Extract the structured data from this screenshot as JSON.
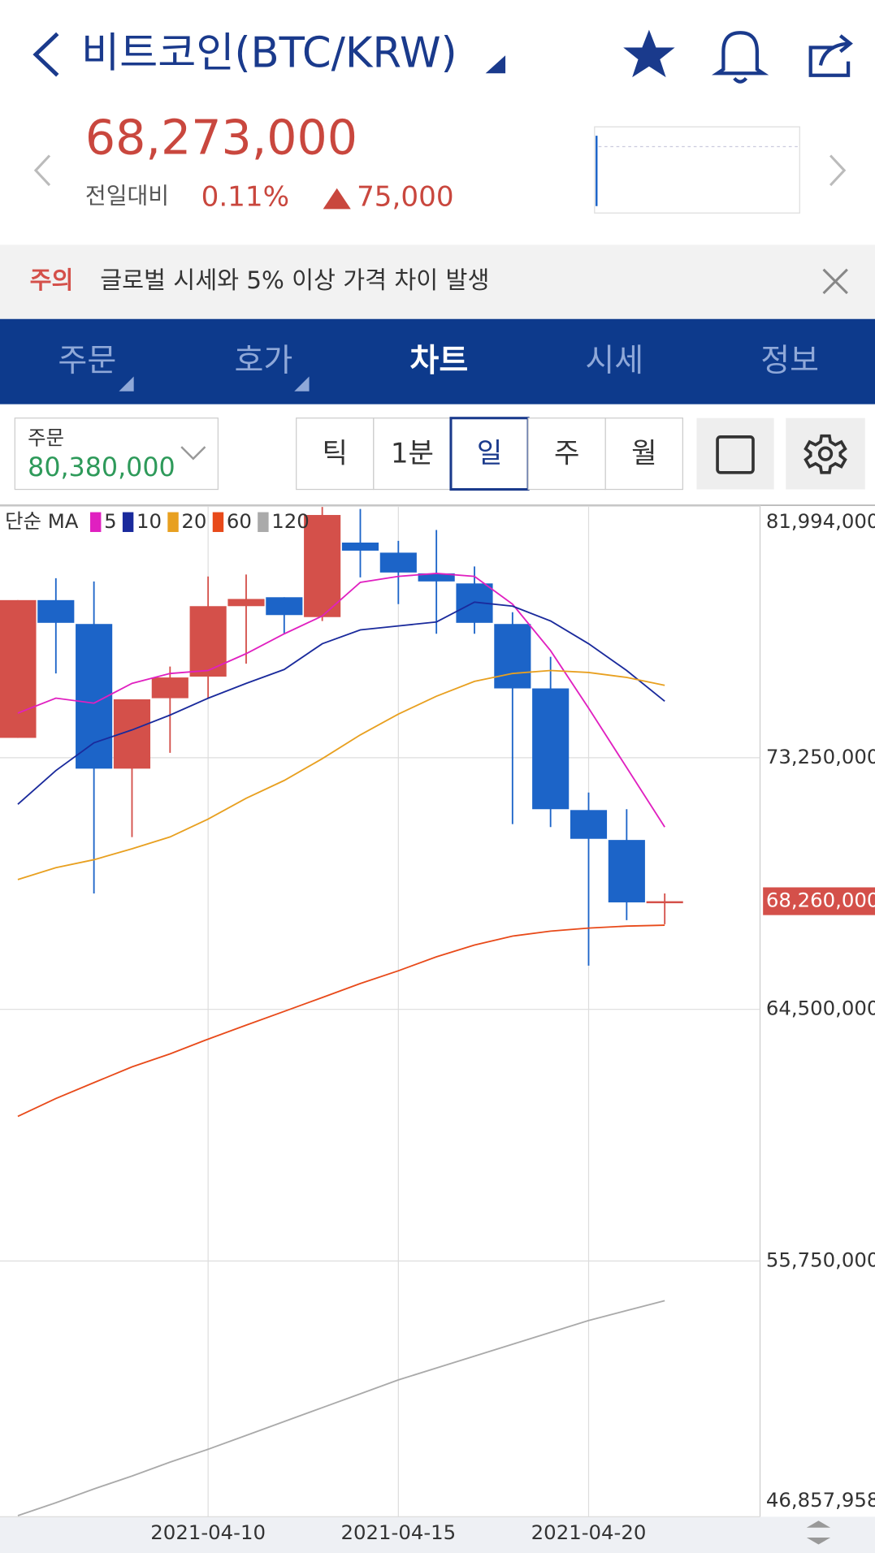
{
  "header": {
    "title": "비트코인(BTC/KRW)"
  },
  "quote": {
    "price": "68,273,000",
    "change_label": "전일대비",
    "change_rate": "0.11%",
    "change_amount": "75,000"
  },
  "notice": {
    "tag": "주의",
    "text": "글로벌 시세와 5% 이상 가격 차이 발생"
  },
  "tabs": [
    "주문",
    "호가",
    "차트",
    "시세",
    "정보"
  ],
  "order": {
    "label": "주문",
    "price": "80,380,000"
  },
  "periods": [
    "틱",
    "1분",
    "일",
    "주",
    "월"
  ],
  "chart_data": {
    "type": "candlestick",
    "legend_title": "단순 MA",
    "categories": [
      null,
      null,
      null,
      null,
      null,
      "2021-04-10",
      null,
      null,
      null,
      null,
      "2021-04-15",
      null,
      null,
      null,
      null,
      "2021-04-20",
      null,
      null
    ],
    "open": [
      73940000,
      78730000,
      77900000,
      72870000,
      75320000,
      76070000,
      78520000,
      78830000,
      78140000,
      80730000,
      80380000,
      79660000,
      79310000,
      77900000,
      75660000,
      71430000,
      70390000,
      68190000
    ],
    "high": [
      78730000,
      79490000,
      79380000,
      75280000,
      76420000,
      79550000,
      79620000,
      78830000,
      81970000,
      81900000,
      80790000,
      81170000,
      79900000,
      78310000,
      76760000,
      72040000,
      71460000,
      68530000
    ],
    "low": [
      73940000,
      76180000,
      68530000,
      70490000,
      73420000,
      75320000,
      76520000,
      77560000,
      78000000,
      79520000,
      78590000,
      77560000,
      77560000,
      70940000,
      70840000,
      66020000,
      67600000,
      67460000
    ],
    "close": [
      78730000,
      77940000,
      72870000,
      75280000,
      76040000,
      78520000,
      78770000,
      78210000,
      81690000,
      80450000,
      79690000,
      79380000,
      77940000,
      75660000,
      71460000,
      70430000,
      68220000,
      68260000
    ],
    "up_color": "#d4504a",
    "down_color": "#1c64c8",
    "series": [
      {
        "name": "5",
        "color": "#e020c0",
        "values": [
          74800000,
          75320000,
          75145000,
          75834000,
          76178000,
          76282000,
          76867000,
          77556000,
          78176000,
          79347000,
          79554000,
          79658000,
          79554000,
          78590000,
          76970000,
          74972000,
          72906000,
          70839000
        ]
      },
      {
        "name": "10",
        "color": "#1a2a9c",
        "values": [
          71631000,
          72802000,
          73767000,
          74215000,
          74731000,
          75317000,
          75834000,
          76316000,
          77212000,
          77694000,
          77832000,
          77970000,
          78658000,
          78521000,
          78004000,
          77212000,
          76282000,
          75214000
        ]
      },
      {
        "name": "20",
        "color": "#e8a020",
        "values": [
          69013000,
          69426000,
          69702000,
          70081000,
          70494000,
          71114000,
          71838000,
          72458000,
          73216000,
          74042000,
          74766000,
          75386000,
          75903000,
          76178000,
          76282000,
          76213000,
          76040000,
          75765000
        ]
      },
      {
        "name": "60",
        "color": "#e84a1a",
        "values": [
          60779000,
          61400000,
          61951000,
          62502000,
          62950000,
          63466000,
          63949000,
          64431000,
          64913000,
          65396000,
          65843000,
          66326000,
          66739000,
          67049000,
          67221000,
          67325000,
          67394000,
          67428000
        ]
      },
      {
        "name": "120",
        "color": "#aaaaaa",
        "values": [
          46897000,
          47344000,
          47827000,
          48274000,
          48757000,
          49205000,
          49687000,
          50169000,
          50651000,
          51134000,
          51616000,
          52029000,
          52443000,
          52856000,
          53270000,
          53683000,
          54027000,
          54372000
        ]
      }
    ],
    "ylim": [
      46857958,
      81994000
    ],
    "yticks": [
      {
        "value": 46857958,
        "label": "46,857,958"
      },
      {
        "value": 55750000,
        "label": "55,750,000"
      },
      {
        "value": 64500000,
        "label": "64,500,000"
      },
      {
        "value": 73250000,
        "label": "73,250,000"
      },
      {
        "value": 81994000,
        "label": "81,994,000"
      }
    ],
    "price_tag": {
      "value": 68260000,
      "label": "68,260,000"
    },
    "grid": true
  }
}
